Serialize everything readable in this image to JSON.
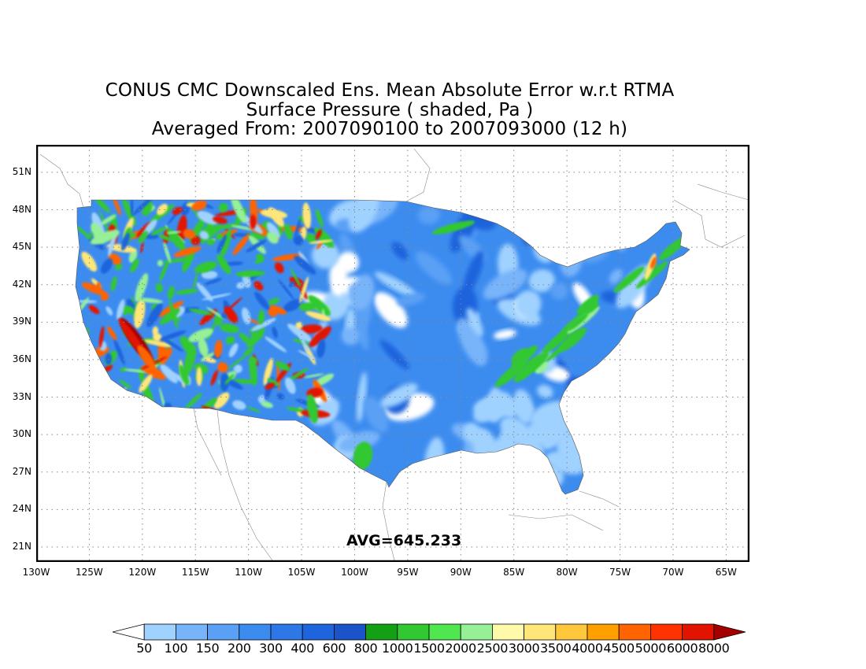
{
  "title": {
    "line1": "CONUS CMC Downscaled Ens. Mean Absolute Error w.r.t RTMA",
    "line2": "Surface Pressure ( shaded, Pa )",
    "line3": "Averaged From: 2007090100 to 2007093000 (12 h)"
  },
  "latitude_labels": [
    "51N",
    "48N",
    "45N",
    "42N",
    "39N",
    "36N",
    "33N",
    "30N",
    "27N",
    "24N",
    "21N"
  ],
  "longitude_labels": [
    "130W",
    "125W",
    "120W",
    "115W",
    "110W",
    "105W",
    "100W",
    "95W",
    "90W",
    "85W",
    "80W",
    "75W",
    "70W",
    "65W"
  ],
  "map_extent": {
    "lon_min": -130,
    "lon_max": -62.8,
    "lat_min": 19.8,
    "lat_max": 53.2
  },
  "average_label": "AVG=645.233",
  "colorbar": {
    "labels": [
      "50",
      "100",
      "150",
      "200",
      "300",
      "400",
      "600",
      "800",
      "1000",
      "1500",
      "2000",
      "2500",
      "3000",
      "3500",
      "4000",
      "4500",
      "5000",
      "6000",
      "8000"
    ],
    "colors": [
      "#ffffff",
      "#a0d2ff",
      "#78b4fa",
      "#5aa0f5",
      "#3c8cf0",
      "#2d78e6",
      "#1e64dc",
      "#1a54c8",
      "#14a014",
      "#32c832",
      "#50e650",
      "#96f096",
      "#fffaaa",
      "#ffe678",
      "#ffc83c",
      "#ffa000",
      "#ff6400",
      "#ff3200",
      "#e11400",
      "#a50000"
    ]
  },
  "field": {
    "description_colors": {
      "low": "#a0d2ff",
      "mid": "#3c8cf0",
      "high_blue": "#1e64dc",
      "green": "#32c832",
      "light_green": "#96f096",
      "yellow": "#ffe678",
      "orange": "#ff6400",
      "red": "#e11400",
      "dark_red": "#a50000"
    }
  }
}
